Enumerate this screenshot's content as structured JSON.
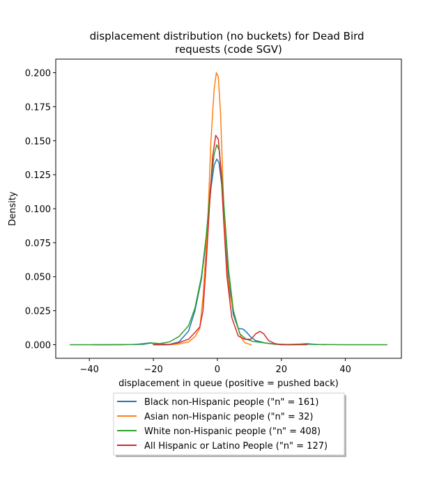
{
  "chart_data": {
    "type": "line",
    "title": "displacement distribution (no buckets)  for Dead Bird\nrequests (code SGV)",
    "xlabel": "displacement in queue (positive = pushed back)",
    "ylabel": "Density",
    "xlim": [
      -50.5,
      57.5
    ],
    "ylim": [
      -0.01,
      0.21
    ],
    "xticks": [
      -40,
      -20,
      0,
      20,
      40
    ],
    "xtick_labels": [
      "−40",
      "−20",
      "0",
      "20",
      "40"
    ],
    "yticks": [
      0.0,
      0.025,
      0.05,
      0.075,
      0.1,
      0.125,
      0.15,
      0.175,
      0.2
    ],
    "ytick_labels": [
      "0.000",
      "0.025",
      "0.050",
      "0.075",
      "0.100",
      "0.125",
      "0.150",
      "0.175",
      "0.200"
    ],
    "grid": false,
    "legend_position": "below plot, centered",
    "series": [
      {
        "name": "Black non-Hispanic people (\"n\" = 161)",
        "color": "#1f77b4",
        "points": [
          [
            -39,
            0
          ],
          [
            -30,
            0
          ],
          [
            -23,
            0.0003
          ],
          [
            -21,
            0.0012
          ],
          [
            -19,
            0.0006
          ],
          [
            -15,
            0.0002
          ],
          [
            -12,
            0.002
          ],
          [
            -9,
            0.01
          ],
          [
            -7,
            0.025
          ],
          [
            -5,
            0.048
          ],
          [
            -3.5,
            0.078
          ],
          [
            -2,
            0.115
          ],
          [
            -1,
            0.132
          ],
          [
            -0.2,
            0.1365
          ],
          [
            0.5,
            0.134
          ],
          [
            1.5,
            0.115
          ],
          [
            2.5,
            0.083
          ],
          [
            3.5,
            0.048
          ],
          [
            5,
            0.022
          ],
          [
            6.5,
            0.012
          ],
          [
            8,
            0.0115
          ],
          [
            9,
            0.0095
          ],
          [
            10.5,
            0.0055
          ],
          [
            12,
            0.003
          ],
          [
            15,
            0.0012
          ],
          [
            18,
            0.0003
          ],
          [
            22,
            0
          ],
          [
            28,
            0.0004
          ],
          [
            34,
            0
          ]
        ]
      },
      {
        "name": "Asian non-Hispanic people (\"n\" = 32)",
        "color": "#ff7f0e",
        "points": [
          [
            -20,
            0
          ],
          [
            -16,
            0
          ],
          [
            -12,
            0.0005
          ],
          [
            -9,
            0.002
          ],
          [
            -7,
            0.006
          ],
          [
            -5.5,
            0.012
          ],
          [
            -4.5,
            0.035
          ],
          [
            -3,
            0.09
          ],
          [
            -2,
            0.15
          ],
          [
            -1,
            0.188
          ],
          [
            -0.3,
            0.2
          ],
          [
            0.3,
            0.197
          ],
          [
            1,
            0.17
          ],
          [
            1.8,
            0.115
          ],
          [
            2.8,
            0.06
          ],
          [
            3.8,
            0.038
          ],
          [
            5,
            0.025
          ],
          [
            6.5,
            0.012
          ],
          [
            7.5,
            0.005
          ],
          [
            8.5,
            0.0015
          ],
          [
            10.5,
            0
          ]
        ]
      },
      {
        "name": "White non-Hispanic people (\"n\" = 408)",
        "color": "#2ca02c",
        "points": [
          [
            -46,
            0
          ],
          [
            -35,
            0
          ],
          [
            -26,
            0.0002
          ],
          [
            -23,
            0.0008
          ],
          [
            -21,
            0.0014
          ],
          [
            -18,
            0.0008
          ],
          [
            -15,
            0.002
          ],
          [
            -12,
            0.006
          ],
          [
            -9,
            0.014
          ],
          [
            -7,
            0.027
          ],
          [
            -5,
            0.05
          ],
          [
            -3.5,
            0.08
          ],
          [
            -2,
            0.12
          ],
          [
            -1,
            0.14
          ],
          [
            -0.2,
            0.147
          ],
          [
            0.6,
            0.143
          ],
          [
            1.5,
            0.12
          ],
          [
            2.5,
            0.088
          ],
          [
            3.5,
            0.055
          ],
          [
            5,
            0.025
          ],
          [
            7,
            0.008
          ],
          [
            9,
            0.004
          ],
          [
            11,
            0.0025
          ],
          [
            14,
            0.0015
          ],
          [
            18,
            0.0005
          ],
          [
            22,
            0.0002
          ],
          [
            26,
            0.0005
          ],
          [
            28,
            0.0008
          ],
          [
            31,
            0.0002
          ],
          [
            40,
            0
          ],
          [
            53,
            0
          ]
        ]
      },
      {
        "name": "All Hispanic or Latino People (\"n\" = 127)",
        "color": "#d62728",
        "points": [
          [
            -20,
            0
          ],
          [
            -15,
            0
          ],
          [
            -12,
            0.0015
          ],
          [
            -9,
            0.004
          ],
          [
            -7,
            0.009
          ],
          [
            -5.5,
            0.013
          ],
          [
            -4.5,
            0.025
          ],
          [
            -3.5,
            0.06
          ],
          [
            -2.5,
            0.1
          ],
          [
            -1.5,
            0.138
          ],
          [
            -0.5,
            0.154
          ],
          [
            0.3,
            0.151
          ],
          [
            1.2,
            0.125
          ],
          [
            2,
            0.09
          ],
          [
            3,
            0.05
          ],
          [
            4.5,
            0.02
          ],
          [
            6.5,
            0.0065
          ],
          [
            8.5,
            0.004
          ],
          [
            10.5,
            0.004
          ],
          [
            12,
            0.008
          ],
          [
            13.3,
            0.0098
          ],
          [
            14.5,
            0.008
          ],
          [
            16,
            0.003
          ],
          [
            18,
            0.0008
          ],
          [
            20,
            0
          ],
          [
            28,
            0
          ]
        ]
      }
    ]
  }
}
